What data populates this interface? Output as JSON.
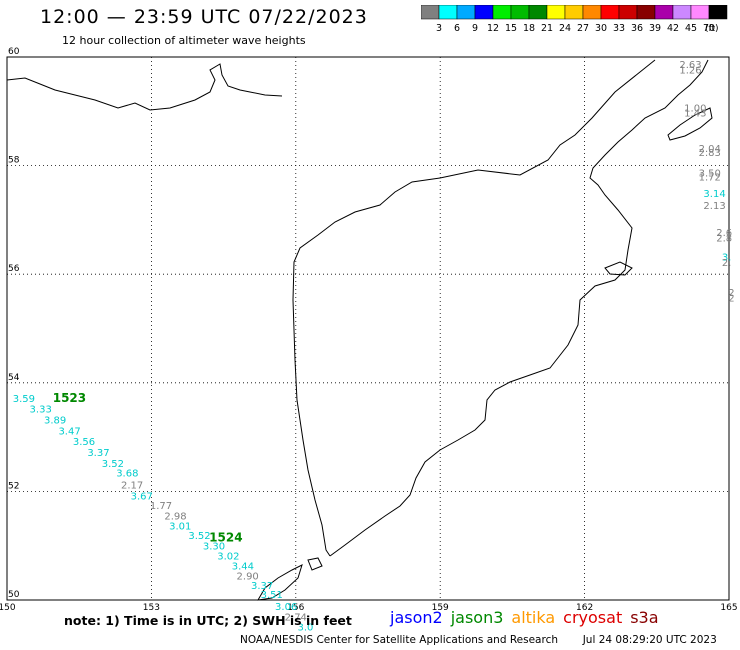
{
  "title": "12:00 — 23:59 UTC 07/22/2023",
  "subtitle": "12 hour collection of altimeter wave heights",
  "legend": {
    "unit": "(ft)",
    "bins": [
      {
        "label": "3",
        "color": "#808080"
      },
      {
        "label": "6",
        "color": "#00ffff"
      },
      {
        "label": "9",
        "color": "#00aaff"
      },
      {
        "label": "12",
        "color": "#0000ff"
      },
      {
        "label": "15",
        "color": "#00ee00"
      },
      {
        "label": "18",
        "color": "#00bb00"
      },
      {
        "label": "21",
        "color": "#008800"
      },
      {
        "label": "24",
        "color": "#ffff00"
      },
      {
        "label": "27",
        "color": "#ffcc00"
      },
      {
        "label": "30",
        "color": "#ff8800"
      },
      {
        "label": "33",
        "color": "#ff0000"
      },
      {
        "label": "36",
        "color": "#cc0000"
      },
      {
        "label": "39",
        "color": "#880000"
      },
      {
        "label": "42",
        "color": "#aa00aa"
      },
      {
        "label": "45",
        "color": "#cc88ff"
      },
      {
        "label": "70",
        "color": "#ff88ff"
      },
      {
        "label": "",
        "color": "#000000"
      }
    ]
  },
  "axes": {
    "lon_ticks": [
      "150",
      "153",
      "156",
      "159",
      "162",
      "165"
    ],
    "lat_ticks": [
      "60",
      "58",
      "56",
      "54",
      "52",
      "50"
    ]
  },
  "observations": [
    {
      "lon": 150.35,
      "lat": 53.65,
      "v": "3.59",
      "color": "#00cccc"
    },
    {
      "lon": 150.7,
      "lat": 53.45,
      "v": "3.33",
      "color": "#00cccc"
    },
    {
      "lon": 151.0,
      "lat": 53.25,
      "v": "3.89",
      "color": "#00cccc"
    },
    {
      "lon": 151.3,
      "lat": 53.05,
      "v": "3.47",
      "color": "#00cccc"
    },
    {
      "lon": 151.6,
      "lat": 52.85,
      "v": "3.56",
      "color": "#00cccc"
    },
    {
      "lon": 151.9,
      "lat": 52.65,
      "v": "3.37",
      "color": "#00cccc"
    },
    {
      "lon": 152.2,
      "lat": 52.45,
      "v": "3.52",
      "color": "#00cccc"
    },
    {
      "lon": 152.5,
      "lat": 52.27,
      "v": "3.68",
      "color": "#00cccc"
    },
    {
      "lon": 152.6,
      "lat": 52.05,
      "v": "2.17",
      "color": "#808080"
    },
    {
      "lon": 152.8,
      "lat": 51.85,
      "v": "3.67",
      "color": "#00cccc"
    },
    {
      "lon": 153.2,
      "lat": 51.68,
      "v": "1.77",
      "color": "#808080"
    },
    {
      "lon": 153.5,
      "lat": 51.48,
      "v": "2.98",
      "color": "#808080"
    },
    {
      "lon": 153.6,
      "lat": 51.3,
      "v": "3.01",
      "color": "#00cccc"
    },
    {
      "lon": 154.0,
      "lat": 51.12,
      "v": "3.52",
      "color": "#00cccc"
    },
    {
      "lon": 154.3,
      "lat": 50.93,
      "v": "3.30",
      "color": "#00cccc"
    },
    {
      "lon": 154.6,
      "lat": 50.75,
      "v": "3.02",
      "color": "#00cccc"
    },
    {
      "lon": 154.9,
      "lat": 50.56,
      "v": "3.44",
      "color": "#00cccc"
    },
    {
      "lon": 155.0,
      "lat": 50.38,
      "v": "2.90",
      "color": "#808080"
    },
    {
      "lon": 155.3,
      "lat": 50.2,
      "v": "3.37",
      "color": "#00cccc"
    },
    {
      "lon": 155.5,
      "lat": 50.04,
      "v": "3.51",
      "color": "#00cccc"
    },
    {
      "lon": 155.8,
      "lat": 49.82,
      "v": "3.06",
      "color": "#00cccc"
    },
    {
      "lon": 156.0,
      "lat": 49.62,
      "v": "2.74",
      "color": "#808080"
    },
    {
      "lon": 156.2,
      "lat": 49.44,
      "v": "3.0",
      "color": "#00cccc"
    },
    {
      "lon": 164.2,
      "lat": 59.8,
      "v": "2.63",
      "color": "#808080"
    },
    {
      "lon": 164.2,
      "lat": 59.7,
      "v": "1.26",
      "color": "#808080"
    },
    {
      "lon": 164.3,
      "lat": 59.0,
      "v": "1.00",
      "color": "#808080"
    },
    {
      "lon": 164.3,
      "lat": 58.9,
      "v": "1.43",
      "color": "#808080"
    },
    {
      "lon": 164.6,
      "lat": 58.25,
      "v": "2.04",
      "color": "#808080"
    },
    {
      "lon": 164.6,
      "lat": 58.18,
      "v": "2.83",
      "color": "#808080"
    },
    {
      "lon": 164.6,
      "lat": 57.8,
      "v": "3.50",
      "color": "#808080"
    },
    {
      "lon": 164.6,
      "lat": 57.73,
      "v": "1.72",
      "color": "#808080"
    },
    {
      "lon": 164.7,
      "lat": 57.42,
      "v": "3.14",
      "color": "#00cccc"
    },
    {
      "lon": 164.7,
      "lat": 57.2,
      "v": "2.13",
      "color": "#808080"
    },
    {
      "lon": 164.9,
      "lat": 56.7,
      "v": "2.6",
      "color": "#808080"
    },
    {
      "lon": 164.9,
      "lat": 56.6,
      "v": "2.8",
      "color": "#808080"
    },
    {
      "lon": 164.95,
      "lat": 56.25,
      "v": "3.",
      "color": "#00cccc"
    },
    {
      "lon": 164.95,
      "lat": 56.15,
      "v": "2.",
      "color": "#808080"
    },
    {
      "lon": 165.05,
      "lat": 55.6,
      "v": "2",
      "color": "#808080"
    },
    {
      "lon": 165.05,
      "lat": 55.5,
      "v": "2",
      "color": "#808080"
    }
  ],
  "pass_labels": [
    {
      "lon": 150.95,
      "lat": 53.65,
      "text": "1523",
      "color": "#008800"
    },
    {
      "lon": 154.2,
      "lat": 51.08,
      "text": "1524",
      "color": "#008800"
    }
  ],
  "note": "note: 1) Time is in UTC; 2) SWH is in feet",
  "satellites": [
    {
      "name": "jason2",
      "color": "#0000ff"
    },
    {
      "name": "jason3",
      "color": "#008800"
    },
    {
      "name": "altika",
      "color": "#ff9900"
    },
    {
      "name": "cryosat",
      "color": "#dd0000"
    },
    {
      "name": "s3a",
      "color": "#880000"
    }
  ],
  "credit": "NOAA/NESDIS Center for Satellite Applications and Research",
  "generated": "Jul 24 08:29:20 UTC 2023"
}
